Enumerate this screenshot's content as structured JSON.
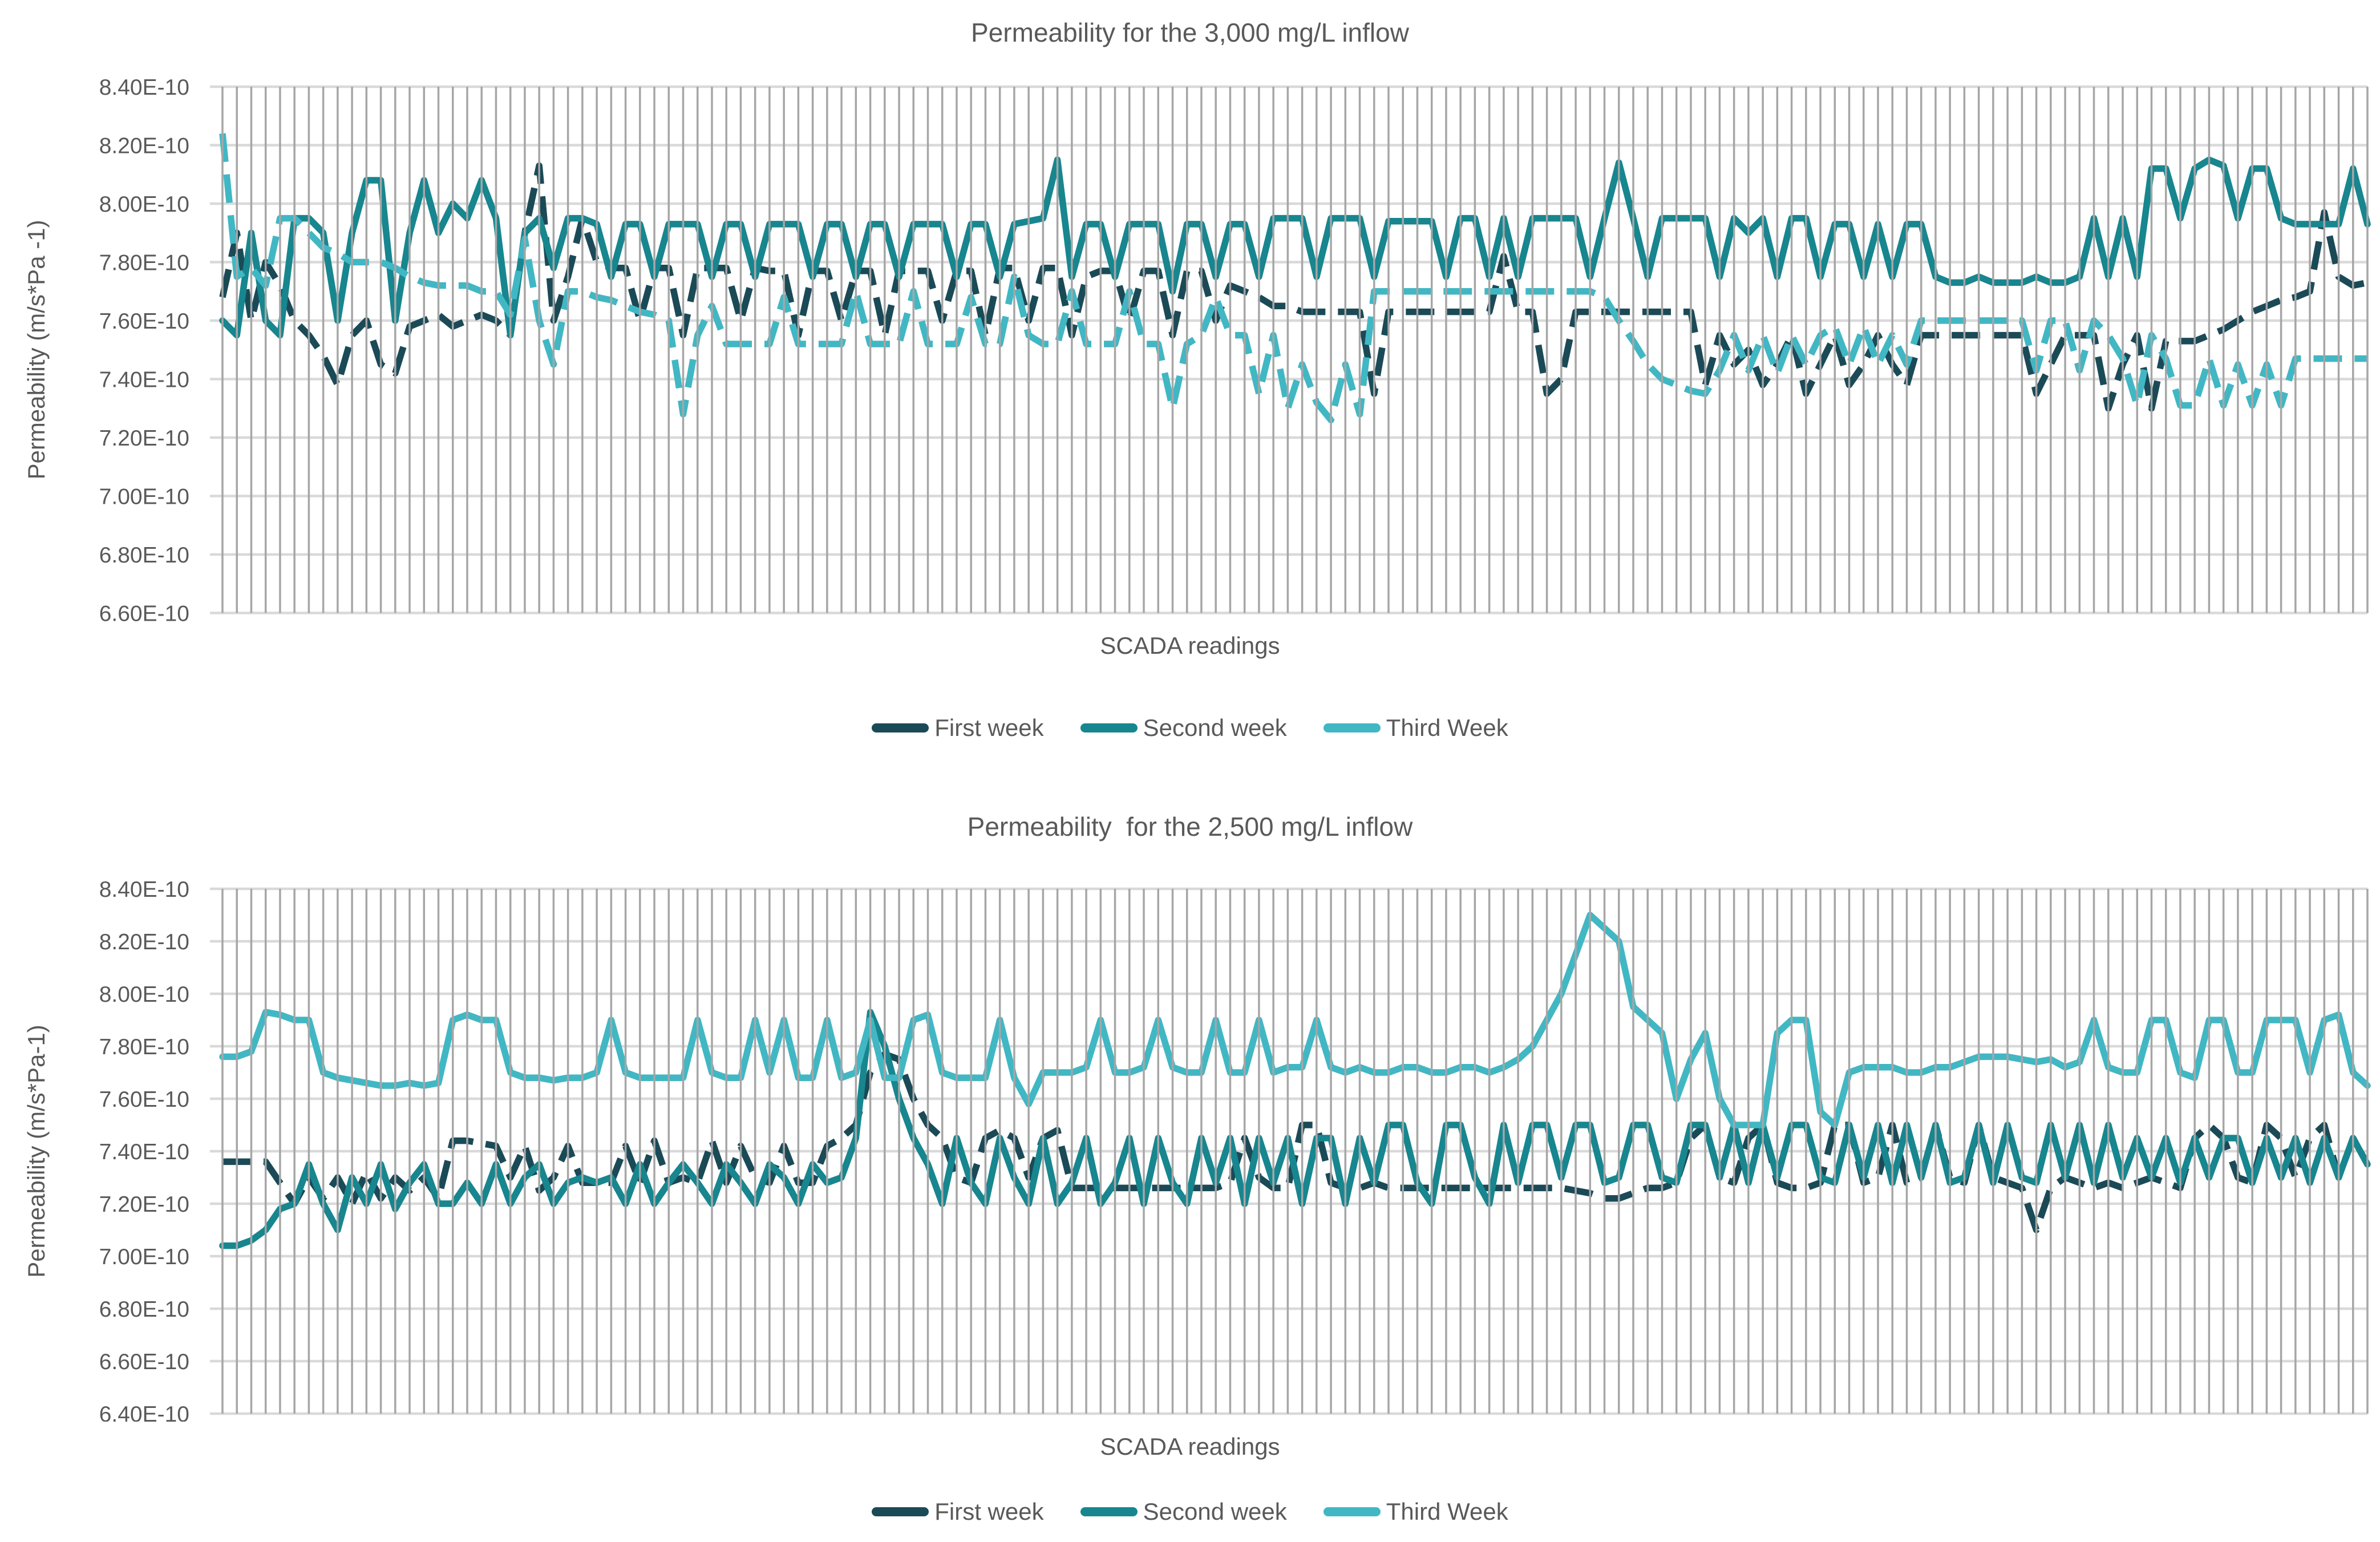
{
  "chart_data": [
    {
      "type": "line",
      "title": "Permeability for the 3,000 mg/L inflow",
      "xlabel": "SCADA readings",
      "ylabel": "Permeability (m/s*Pa -1)",
      "ylim": [
        6.6,
        8.4
      ],
      "y_step": 0.2,
      "y_tick_suffix": "E-10",
      "y_unit_scale": "1e-10",
      "grid": true,
      "vertical_gridline_per_reading": true,
      "legend_position": "bottom",
      "series": [
        {
          "name": "First week",
          "color": "#1b4a57",
          "dashed": true,
          "values": [
            7.68,
            7.9,
            7.6,
            7.8,
            7.72,
            7.6,
            7.55,
            7.48,
            7.38,
            7.55,
            7.6,
            7.45,
            7.42,
            7.58,
            7.6,
            7.62,
            7.58,
            7.6,
            7.62,
            7.6,
            7.55,
            7.9,
            8.13,
            7.6,
            7.75,
            7.95,
            7.8,
            7.78,
            7.78,
            7.6,
            7.78,
            7.78,
            7.55,
            7.78,
            7.78,
            7.78,
            7.6,
            7.78,
            7.77,
            7.77,
            7.55,
            7.77,
            7.77,
            7.6,
            7.77,
            7.77,
            7.55,
            7.77,
            7.77,
            7.77,
            7.6,
            7.77,
            7.77,
            7.55,
            7.78,
            7.78,
            7.6,
            7.78,
            7.78,
            7.55,
            7.75,
            7.77,
            7.77,
            7.6,
            7.77,
            7.77,
            7.55,
            7.77,
            7.77,
            7.6,
            7.72,
            7.7,
            7.68,
            7.65,
            7.65,
            7.63,
            7.63,
            7.63,
            7.63,
            7.63,
            7.35,
            7.63,
            7.63,
            7.63,
            7.63,
            7.63,
            7.63,
            7.63,
            7.63,
            7.82,
            7.63,
            7.63,
            7.35,
            7.4,
            7.63,
            7.63,
            7.63,
            7.63,
            7.63,
            7.63,
            7.63,
            7.63,
            7.63,
            7.38,
            7.55,
            7.45,
            7.5,
            7.38,
            7.45,
            7.55,
            7.35,
            7.45,
            7.55,
            7.38,
            7.45,
            7.55,
            7.45,
            7.38,
            7.55,
            7.55,
            7.55,
            7.55,
            7.55,
            7.55,
            7.55,
            7.55,
            7.35,
            7.45,
            7.55,
            7.55,
            7.55,
            7.3,
            7.45,
            7.55,
            7.3,
            7.53,
            7.53,
            7.53,
            7.55,
            7.57,
            7.6,
            7.63,
            7.65,
            7.67,
            7.68,
            7.7,
            7.97,
            7.75,
            7.72,
            7.73
          ]
        },
        {
          "name": "Second week",
          "color": "#17868f",
          "dashed": false,
          "values": [
            7.6,
            7.55,
            7.9,
            7.6,
            7.55,
            7.95,
            7.95,
            7.9,
            7.6,
            7.9,
            8.08,
            8.08,
            7.6,
            7.9,
            8.08,
            7.9,
            8.0,
            7.95,
            8.08,
            7.95,
            7.55,
            7.9,
            7.95,
            7.78,
            7.95,
            7.95,
            7.93,
            7.75,
            7.93,
            7.93,
            7.75,
            7.93,
            7.93,
            7.93,
            7.75,
            7.93,
            7.93,
            7.75,
            7.93,
            7.93,
            7.93,
            7.75,
            7.93,
            7.93,
            7.75,
            7.93,
            7.93,
            7.75,
            7.93,
            7.93,
            7.93,
            7.75,
            7.93,
            7.93,
            7.75,
            7.93,
            7.94,
            7.95,
            8.15,
            7.75,
            7.93,
            7.93,
            7.75,
            7.93,
            7.93,
            7.93,
            7.7,
            7.93,
            7.93,
            7.75,
            7.93,
            7.93,
            7.75,
            7.95,
            7.95,
            7.95,
            7.75,
            7.95,
            7.95,
            7.95,
            7.75,
            7.94,
            7.94,
            7.94,
            7.94,
            7.75,
            7.95,
            7.95,
            7.75,
            7.95,
            7.75,
            7.95,
            7.95,
            7.95,
            7.95,
            7.75,
            7.95,
            8.14,
            7.95,
            7.75,
            7.95,
            7.95,
            7.95,
            7.95,
            7.75,
            7.95,
            7.9,
            7.95,
            7.75,
            7.95,
            7.95,
            7.75,
            7.93,
            7.93,
            7.75,
            7.93,
            7.75,
            7.93,
            7.93,
            7.75,
            7.73,
            7.73,
            7.75,
            7.73,
            7.73,
            7.73,
            7.75,
            7.73,
            7.73,
            7.75,
            7.95,
            7.75,
            7.95,
            7.75,
            8.12,
            8.12,
            7.95,
            8.12,
            8.15,
            8.13,
            7.95,
            8.12,
            8.12,
            7.95,
            7.93,
            7.93,
            7.93,
            7.93,
            8.12,
            7.93
          ]
        },
        {
          "name": "Third Week",
          "color": "#41b7c4",
          "dashed": true,
          "values": [
            8.24,
            7.75,
            7.78,
            7.72,
            7.95,
            7.95,
            7.9,
            7.85,
            7.83,
            7.8,
            7.8,
            7.8,
            7.78,
            7.75,
            7.73,
            7.72,
            7.72,
            7.72,
            7.7,
            7.7,
            7.62,
            7.88,
            7.6,
            7.45,
            7.7,
            7.7,
            7.68,
            7.67,
            7.65,
            7.63,
            7.62,
            7.6,
            7.28,
            7.55,
            7.65,
            7.52,
            7.52,
            7.52,
            7.52,
            7.68,
            7.52,
            7.52,
            7.52,
            7.52,
            7.7,
            7.52,
            7.52,
            7.52,
            7.7,
            7.52,
            7.52,
            7.52,
            7.68,
            7.52,
            7.52,
            7.75,
            7.55,
            7.52,
            7.52,
            7.7,
            7.52,
            7.52,
            7.52,
            7.7,
            7.52,
            7.52,
            7.3,
            7.52,
            7.55,
            7.68,
            7.55,
            7.55,
            7.35,
            7.55,
            7.3,
            7.45,
            7.32,
            7.26,
            7.45,
            7.28,
            7.7,
            7.7,
            7.7,
            7.7,
            7.7,
            7.7,
            7.7,
            7.7,
            7.7,
            7.7,
            7.7,
            7.7,
            7.7,
            7.7,
            7.7,
            7.7,
            7.68,
            7.6,
            7.53,
            7.45,
            7.4,
            7.38,
            7.36,
            7.35,
            7.43,
            7.55,
            7.43,
            7.55,
            7.42,
            7.55,
            7.45,
            7.55,
            7.58,
            7.45,
            7.58,
            7.45,
            7.55,
            7.45,
            7.6,
            7.6,
            7.6,
            7.6,
            7.6,
            7.6,
            7.6,
            7.6,
            7.43,
            7.6,
            7.6,
            7.43,
            7.6,
            7.55,
            7.47,
            7.31,
            7.55,
            7.47,
            7.31,
            7.31,
            7.47,
            7.31,
            7.45,
            7.31,
            7.45,
            7.31,
            7.47,
            7.47,
            7.47,
            7.47,
            7.47,
            7.47
          ]
        }
      ]
    },
    {
      "type": "line",
      "title": "Permeability  for the 2,500 mg/L inflow",
      "xlabel": "SCADA readings",
      "ylabel": "Permeability (m/s*Pa-1)",
      "ylim": [
        6.4,
        8.4
      ],
      "y_step": 0.2,
      "y_tick_suffix": "E-10",
      "y_unit_scale": "1e-10",
      "grid": true,
      "vertical_gridline_per_reading": true,
      "legend_position": "bottom",
      "series": [
        {
          "name": "First week",
          "color": "#1b4a57",
          "dashed": true,
          "values": [
            7.36,
            7.36,
            7.36,
            7.36,
            7.28,
            7.2,
            7.3,
            7.22,
            7.3,
            7.2,
            7.32,
            7.22,
            7.3,
            7.25,
            7.3,
            7.22,
            7.44,
            7.44,
            7.43,
            7.42,
            7.3,
            7.42,
            7.25,
            7.3,
            7.42,
            7.28,
            7.28,
            7.28,
            7.42,
            7.28,
            7.44,
            7.28,
            7.3,
            7.28,
            7.44,
            7.28,
            7.42,
            7.3,
            7.28,
            7.42,
            7.28,
            7.28,
            7.42,
            7.45,
            7.5,
            7.7,
            7.77,
            7.75,
            7.6,
            7.5,
            7.45,
            7.3,
            7.28,
            7.45,
            7.48,
            7.45,
            7.3,
            7.45,
            7.48,
            7.26,
            7.26,
            7.26,
            7.26,
            7.26,
            7.26,
            7.26,
            7.26,
            7.26,
            7.26,
            7.26,
            7.28,
            7.45,
            7.3,
            7.26,
            7.26,
            7.5,
            7.5,
            7.28,
            7.26,
            7.26,
            7.28,
            7.26,
            7.26,
            7.26,
            7.26,
            7.26,
            7.26,
            7.26,
            7.26,
            7.26,
            7.26,
            7.26,
            7.26,
            7.26,
            7.25,
            7.24,
            7.22,
            7.22,
            7.24,
            7.26,
            7.26,
            7.28,
            7.45,
            7.5,
            7.3,
            7.28,
            7.45,
            7.5,
            7.28,
            7.26,
            7.26,
            7.28,
            7.5,
            7.5,
            7.28,
            7.3,
            7.5,
            7.28,
            7.3,
            7.5,
            7.3,
            7.28,
            7.5,
            7.3,
            7.28,
            7.26,
            7.1,
            7.26,
            7.3,
            7.28,
            7.26,
            7.28,
            7.26,
            7.28,
            7.3,
            7.28,
            7.26,
            7.45,
            7.5,
            7.45,
            7.3,
            7.28,
            7.5,
            7.45,
            7.3,
            7.45,
            7.5,
            7.3,
            7.45,
            7.35
          ]
        },
        {
          "name": "Second week",
          "color": "#17868f",
          "dashed": false,
          "values": [
            7.04,
            7.04,
            7.06,
            7.1,
            7.18,
            7.2,
            7.35,
            7.2,
            7.1,
            7.3,
            7.2,
            7.35,
            7.18,
            7.28,
            7.35,
            7.2,
            7.2,
            7.28,
            7.2,
            7.35,
            7.2,
            7.3,
            7.35,
            7.2,
            7.28,
            7.3,
            7.28,
            7.3,
            7.2,
            7.35,
            7.2,
            7.28,
            7.35,
            7.28,
            7.2,
            7.35,
            7.28,
            7.2,
            7.35,
            7.3,
            7.2,
            7.35,
            7.28,
            7.3,
            7.45,
            7.93,
            7.8,
            7.6,
            7.45,
            7.35,
            7.2,
            7.45,
            7.28,
            7.2,
            7.45,
            7.3,
            7.2,
            7.45,
            7.2,
            7.28,
            7.45,
            7.2,
            7.28,
            7.45,
            7.2,
            7.45,
            7.28,
            7.2,
            7.45,
            7.28,
            7.45,
            7.2,
            7.45,
            7.28,
            7.45,
            7.2,
            7.45,
            7.45,
            7.2,
            7.45,
            7.28,
            7.5,
            7.5,
            7.28,
            7.2,
            7.5,
            7.5,
            7.3,
            7.2,
            7.5,
            7.28,
            7.5,
            7.5,
            7.3,
            7.5,
            7.5,
            7.28,
            7.3,
            7.5,
            7.5,
            7.3,
            7.28,
            7.5,
            7.5,
            7.3,
            7.5,
            7.28,
            7.5,
            7.3,
            7.5,
            7.5,
            7.3,
            7.28,
            7.5,
            7.3,
            7.5,
            7.28,
            7.5,
            7.3,
            7.5,
            7.28,
            7.3,
            7.5,
            7.28,
            7.5,
            7.3,
            7.28,
            7.5,
            7.3,
            7.5,
            7.28,
            7.5,
            7.3,
            7.45,
            7.3,
            7.45,
            7.28,
            7.45,
            7.3,
            7.45,
            7.45,
            7.28,
            7.45,
            7.3,
            7.45,
            7.28,
            7.45,
            7.3,
            7.45,
            7.35
          ]
        },
        {
          "name": "Third Week",
          "color": "#41b7c4",
          "dashed": false,
          "values": [
            7.76,
            7.76,
            7.78,
            7.93,
            7.92,
            7.9,
            7.9,
            7.7,
            7.68,
            7.67,
            7.66,
            7.65,
            7.65,
            7.66,
            7.65,
            7.66,
            7.9,
            7.92,
            7.9,
            7.9,
            7.7,
            7.68,
            7.68,
            7.67,
            7.68,
            7.68,
            7.7,
            7.9,
            7.7,
            7.68,
            7.68,
            7.68,
            7.68,
            7.9,
            7.7,
            7.68,
            7.68,
            7.9,
            7.7,
            7.9,
            7.68,
            7.68,
            7.9,
            7.68,
            7.7,
            7.9,
            7.68,
            7.68,
            7.9,
            7.92,
            7.7,
            7.68,
            7.68,
            7.68,
            7.9,
            7.68,
            7.58,
            7.7,
            7.7,
            7.7,
            7.72,
            7.9,
            7.7,
            7.7,
            7.72,
            7.9,
            7.72,
            7.7,
            7.7,
            7.9,
            7.7,
            7.7,
            7.9,
            7.7,
            7.72,
            7.72,
            7.9,
            7.72,
            7.7,
            7.72,
            7.7,
            7.7,
            7.72,
            7.72,
            7.7,
            7.7,
            7.72,
            7.72,
            7.7,
            7.72,
            7.75,
            7.8,
            7.9,
            8.0,
            8.15,
            8.3,
            8.25,
            8.2,
            7.95,
            7.9,
            7.85,
            7.6,
            7.75,
            7.85,
            7.6,
            7.5,
            7.5,
            7.5,
            7.85,
            7.9,
            7.9,
            7.55,
            7.5,
            7.7,
            7.72,
            7.72,
            7.72,
            7.7,
            7.7,
            7.72,
            7.72,
            7.74,
            7.76,
            7.76,
            7.76,
            7.75,
            7.74,
            7.75,
            7.72,
            7.74,
            7.9,
            7.72,
            7.7,
            7.7,
            7.9,
            7.9,
            7.7,
            7.68,
            7.9,
            7.9,
            7.7,
            7.7,
            7.9,
            7.9,
            7.9,
            7.7,
            7.9,
            7.92,
            7.7,
            7.65
          ]
        }
      ]
    }
  ],
  "style": {
    "text_color": "#595959",
    "horizontal_gridline_color": "#d9d9d9",
    "vertical_gridline_color": "#a6a6a6",
    "background": "#ffffff"
  }
}
